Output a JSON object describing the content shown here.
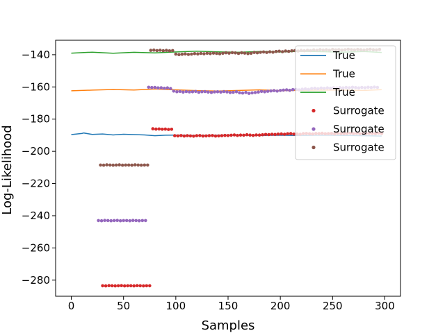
{
  "chart_data": {
    "type": "line",
    "title": "",
    "xlabel": "Samples",
    "ylabel": "Log-Likelihood",
    "xlim": [
      -15,
      315
    ],
    "ylim": [
      -290,
      -131
    ],
    "xticks": [
      0,
      50,
      100,
      150,
      200,
      250,
      300
    ],
    "yticks": [
      -140,
      -160,
      -180,
      -200,
      -220,
      -240,
      -260,
      -280
    ],
    "xtick_labels": [
      "0",
      "50",
      "100",
      "150",
      "200",
      "250",
      "300"
    ],
    "ytick_labels": [
      "−140",
      "−160",
      "−180",
      "−200",
      "−220",
      "−240",
      "−260",
      "−280"
    ],
    "grid": false,
    "legend_position": "top-right",
    "series": [
      {
        "name": "True",
        "kind": "line",
        "color": "#1f77b4",
        "x": [
          0,
          10,
          12,
          20,
          30,
          40,
          50,
          60,
          70,
          80,
          90,
          100,
          120,
          140,
          160,
          180,
          200,
          220,
          240,
          260,
          280,
          297
        ],
        "y": [
          -189.6,
          -188.9,
          -188.6,
          -189.5,
          -189.2,
          -189.8,
          -189.4,
          -189.6,
          -189.8,
          -190.3,
          -190.0,
          -189.9,
          -190.2,
          -190.0,
          -189.9,
          -190.1,
          -190.0,
          -190.2,
          -190.0,
          -190.1,
          -190.3,
          -190.5
        ]
      },
      {
        "name": "True",
        "kind": "line",
        "color": "#ff7f0e",
        "x": [
          0,
          20,
          40,
          60,
          80,
          100,
          120,
          140,
          160,
          180,
          200,
          220,
          240,
          260,
          280,
          297
        ],
        "y": [
          -162.4,
          -162.0,
          -161.6,
          -161.9,
          -161.3,
          -161.8,
          -162.3,
          -162.6,
          -162.2,
          -161.8,
          -162.3,
          -162.1,
          -161.9,
          -162.0,
          -162.2,
          -161.7
        ]
      },
      {
        "name": "True",
        "kind": "line",
        "color": "#2ca02c",
        "x": [
          0,
          20,
          40,
          60,
          80,
          100,
          120,
          140,
          160,
          180,
          200,
          220,
          240,
          260,
          280,
          297
        ],
        "y": [
          -139.0,
          -138.4,
          -139.1,
          -138.5,
          -138.9,
          -138.3,
          -137.8,
          -138.2,
          -138.5,
          -138.0,
          -138.3,
          -137.9,
          -138.1,
          -138.4,
          -138.0,
          -138.6
        ]
      },
      {
        "name": "Surrogate",
        "kind": "scatter",
        "color": "#d62728",
        "x": [
          30,
          33,
          36,
          39,
          42,
          45,
          48,
          51,
          54,
          57,
          60,
          63,
          66,
          69,
          72,
          75,
          78,
          81,
          84,
          87,
          90,
          93,
          96,
          99,
          102,
          105,
          108,
          111,
          114,
          117,
          120,
          123,
          126,
          129,
          132,
          135,
          138,
          141,
          144,
          147,
          150,
          153,
          156,
          159,
          162,
          165,
          168,
          171,
          174,
          177,
          180,
          183,
          186,
          189,
          192,
          195,
          198,
          201,
          204,
          207,
          210,
          213,
          216,
          219,
          222,
          225,
          228,
          231,
          234,
          237,
          240,
          243,
          246,
          249,
          252,
          255,
          258,
          261,
          264,
          267,
          270,
          273,
          276,
          279,
          282,
          285,
          288,
          291,
          294,
          297
        ],
        "y": [
          -283.5,
          -283.6,
          -283.4,
          -283.5,
          -283.6,
          -283.5,
          -283.4,
          -283.6,
          -283.5,
          -283.5,
          -283.6,
          -283.4,
          -283.5,
          -283.6,
          -283.5,
          -283.5,
          -186.0,
          -186.2,
          -186.1,
          -186.3,
          -186.2,
          -186.4,
          -186.3,
          -190.3,
          -190.4,
          -190.2,
          -190.5,
          -190.3,
          -190.4,
          -190.6,
          -190.3,
          -190.2,
          -190.5,
          -190.4,
          -190.3,
          -190.2,
          -190.5,
          -190.4,
          -190.3,
          -190.1,
          -190.2,
          -190.0,
          -189.8,
          -190.1,
          -189.9,
          -190.0,
          -189.7,
          -189.9,
          -190.1,
          -189.8,
          -189.9,
          -189.7,
          -189.5,
          -189.6,
          -189.4,
          -189.5,
          -189.3,
          -189.2,
          -189.4,
          -189.1,
          -189.0,
          -189.3,
          -189.2,
          -189.4,
          -189.0,
          -188.9,
          -189.1,
          -189.2,
          -188.9,
          -189.0,
          -188.8,
          -189.1,
          -189.0,
          -188.9,
          -189.2,
          -188.8,
          -189.0,
          -189.1,
          -188.9,
          -188.7,
          -189.0,
          -188.8,
          -189.1,
          -188.9,
          -189.0,
          -188.8,
          -188.9,
          -189.0,
          -188.7,
          -188.9
        ]
      },
      {
        "name": "Surrogate",
        "kind": "scatter",
        "color": "#9467bd",
        "x": [
          26,
          29,
          32,
          35,
          38,
          41,
          44,
          47,
          50,
          53,
          56,
          59,
          62,
          65,
          68,
          71,
          74,
          77,
          80,
          83,
          86,
          89,
          92,
          95,
          98,
          101,
          104,
          107,
          110,
          113,
          116,
          119,
          122,
          125,
          128,
          131,
          134,
          137,
          140,
          143,
          146,
          149,
          152,
          155,
          158,
          161,
          164,
          167,
          170,
          173,
          176,
          179,
          182,
          185,
          188,
          191,
          194,
          197,
          200,
          203,
          206,
          209,
          212,
          215,
          218,
          221,
          224,
          227,
          230,
          233,
          236,
          239,
          242,
          245,
          248,
          251,
          254,
          257,
          260,
          263,
          266,
          269,
          272,
          275,
          278,
          281,
          284,
          287,
          290,
          293
        ],
        "y": [
          -243.0,
          -243.1,
          -242.9,
          -243.0,
          -243.1,
          -243.0,
          -242.9,
          -243.1,
          -243.0,
          -243.0,
          -243.1,
          -242.9,
          -243.0,
          -243.1,
          -243.0,
          -243.0,
          -160.2,
          -160.4,
          -160.3,
          -160.6,
          -160.5,
          -160.8,
          -160.6,
          -161.0,
          -162.6,
          -163.0,
          -162.8,
          -163.2,
          -162.9,
          -163.1,
          -163.0,
          -162.8,
          -163.3,
          -163.0,
          -162.9,
          -163.2,
          -163.4,
          -163.1,
          -163.0,
          -163.2,
          -162.9,
          -163.1,
          -163.5,
          -163.3,
          -163.0,
          -163.6,
          -163.8,
          -163.4,
          -164.0,
          -163.7,
          -163.5,
          -163.2,
          -162.8,
          -163.0,
          -162.7,
          -162.5,
          -162.3,
          -162.6,
          -162.2,
          -162.0,
          -161.8,
          -162.1,
          -161.7,
          -161.5,
          -161.8,
          -161.4,
          -161.2,
          -161.5,
          -161.0,
          -160.8,
          -161.1,
          -160.7,
          -160.9,
          -160.6,
          -160.8,
          -160.5,
          -160.7,
          -160.4,
          -160.6,
          -160.3,
          -160.5,
          -160.2,
          -160.4,
          -160.6,
          -160.3,
          -160.5,
          -160.2,
          -160.4,
          -160.1,
          -160.3
        ]
      },
      {
        "name": "Surrogate",
        "kind": "scatter",
        "color": "#8c564b",
        "x": [
          28,
          31,
          34,
          37,
          40,
          43,
          46,
          49,
          52,
          55,
          58,
          61,
          64,
          67,
          70,
          73,
          76,
          79,
          82,
          85,
          88,
          91,
          94,
          97,
          100,
          103,
          106,
          109,
          112,
          115,
          118,
          121,
          124,
          127,
          130,
          133,
          136,
          139,
          142,
          145,
          148,
          151,
          154,
          157,
          160,
          163,
          166,
          169,
          172,
          175,
          178,
          181,
          184,
          187,
          190,
          193,
          196,
          199,
          202,
          205,
          208,
          211,
          214,
          217,
          220,
          223,
          226,
          229,
          232,
          235,
          238,
          241,
          244,
          247,
          250,
          253,
          256,
          259,
          262,
          265,
          268,
          271,
          274,
          277,
          280,
          283,
          286,
          289,
          292,
          295
        ],
        "y": [
          -208.5,
          -208.6,
          -208.4,
          -208.5,
          -208.6,
          -208.5,
          -208.4,
          -208.6,
          -208.5,
          -208.5,
          -208.6,
          -208.4,
          -208.5,
          -208.6,
          -208.5,
          -208.5,
          -137.3,
          -137.1,
          -137.4,
          -137.2,
          -137.5,
          -137.3,
          -137.6,
          -137.4,
          -139.6,
          -139.9,
          -139.7,
          -139.5,
          -139.8,
          -139.6,
          -139.3,
          -139.5,
          -139.2,
          -139.4,
          -139.1,
          -139.3,
          -139.0,
          -139.2,
          -139.4,
          -139.1,
          -138.8,
          -139.0,
          -138.7,
          -138.9,
          -139.2,
          -138.8,
          -139.0,
          -139.3,
          -139.1,
          -138.6,
          -138.8,
          -138.5,
          -138.3,
          -138.6,
          -138.2,
          -138.4,
          -138.0,
          -137.8,
          -138.1,
          -137.7,
          -137.9,
          -137.6,
          -137.4,
          -137.7,
          -137.3,
          -137.5,
          -137.2,
          -137.4,
          -137.0,
          -137.3,
          -136.8,
          -137.1,
          -136.9,
          -137.2,
          -136.7,
          -137.0,
          -136.8,
          -137.1,
          -136.9,
          -136.6,
          -136.8,
          -137.0,
          -136.7,
          -136.9,
          -137.1,
          -136.8,
          -136.6,
          -136.9,
          -137.0,
          -136.7
        ]
      }
    ]
  }
}
